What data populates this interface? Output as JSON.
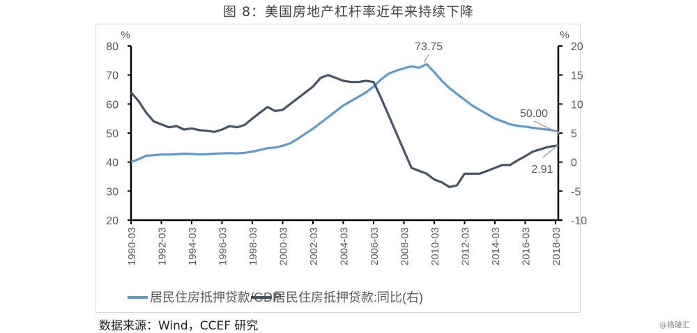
{
  "title": "图 8：美国房地产杠杆率近年来持续下降",
  "source": "数据来源：Wind，CCEF 研究",
  "watermark": "@格隆汇",
  "colors": {
    "gdp_ratio": "#5b9bd5",
    "yoy": "#44546a"
  },
  "chart_data": {
    "type": "line",
    "title": "图 8：美国房地产杠杆率近年来持续下降",
    "xlabel": "",
    "ylabel_left": "%",
    "ylabel_right": "%",
    "ylim_left": [
      20,
      80
    ],
    "ylim_right": [
      -10,
      20
    ],
    "yticks_left": [
      20,
      30,
      40,
      50,
      60,
      70,
      80
    ],
    "yticks_right": [
      -10,
      -5,
      0,
      5,
      10,
      15,
      20
    ],
    "xticks": [
      "1990-03",
      "1992-03",
      "1994-03",
      "1996-03",
      "1998-03",
      "2000-03",
      "2002-03",
      "2004-03",
      "2006-03",
      "2008-03",
      "2010-03",
      "2012-03",
      "2014-03",
      "2016-03",
      "2018-03"
    ],
    "grid": false,
    "legend_position": "bottom",
    "x": [
      1990.0,
      1990.5,
      1991.0,
      1991.5,
      1992.0,
      1992.5,
      1993.0,
      1993.5,
      1994.0,
      1994.5,
      1995.0,
      1995.5,
      1996.0,
      1996.5,
      1997.0,
      1997.5,
      1998.0,
      1998.5,
      1999.0,
      1999.5,
      2000.0,
      2000.5,
      2001.0,
      2001.5,
      2002.0,
      2002.5,
      2003.0,
      2003.5,
      2004.0,
      2004.5,
      2005.0,
      2005.5,
      2006.0,
      2006.5,
      2007.0,
      2007.5,
      2008.0,
      2008.5,
      2009.0,
      2009.5,
      2010.0,
      2010.5,
      2011.0,
      2011.5,
      2012.0,
      2012.5,
      2013.0,
      2013.5,
      2014.0,
      2014.5,
      2015.0,
      2015.5,
      2016.0,
      2016.5,
      2017.0,
      2017.5,
      2018.0,
      2018.25
    ],
    "series": [
      {
        "name": "居民住房抵押贷款/GDP",
        "axis": "left",
        "values": [
          40.0,
          41.0,
          42.2,
          42.4,
          42.6,
          42.6,
          42.7,
          42.9,
          42.8,
          42.6,
          42.7,
          42.9,
          43.0,
          43.1,
          43.0,
          43.2,
          43.6,
          44.2,
          44.8,
          45.0,
          45.6,
          46.5,
          48.0,
          49.8,
          51.5,
          53.5,
          55.5,
          57.5,
          59.5,
          61.0,
          62.5,
          64.0,
          66.0,
          68.5,
          70.5,
          71.5,
          72.3,
          73.0,
          72.5,
          73.75,
          71.0,
          68.0,
          65.5,
          63.5,
          61.5,
          59.5,
          58.0,
          56.5,
          55.0,
          54.0,
          53.0,
          52.5,
          52.2,
          51.8,
          51.5,
          51.2,
          50.8,
          50.0
        ]
      },
      {
        "name": "居民住房抵押贷款:同比(右)",
        "axis": "right",
        "values": [
          12.0,
          10.5,
          8.5,
          7.0,
          6.5,
          6.0,
          6.2,
          5.6,
          5.8,
          5.5,
          5.4,
          5.2,
          5.6,
          6.2,
          6.0,
          6.4,
          7.5,
          8.5,
          9.5,
          8.8,
          9.0,
          10.0,
          11.0,
          12.0,
          13.0,
          14.5,
          15.0,
          14.5,
          14.0,
          13.8,
          13.8,
          14.0,
          13.8,
          11.0,
          8.0,
          5.0,
          2.0,
          -1.0,
          -1.5,
          -2.0,
          -3.0,
          -3.5,
          -4.3,
          -4.0,
          -2.0,
          -2.0,
          -2.0,
          -1.5,
          -1.0,
          -0.5,
          -0.5,
          0.3,
          1.0,
          1.8,
          2.2,
          2.6,
          2.8,
          2.91
        ]
      }
    ],
    "annotations": [
      {
        "text": "73.75",
        "series": "居民住房抵押贷款/GDP",
        "x": 2009.5,
        "y": 73.75
      },
      {
        "text": "50.00",
        "series": "居民住房抵押贷款/GDP",
        "x": 2018.25,
        "y": 50.0
      },
      {
        "text": "2.91",
        "series": "居民住房抵押贷款:同比(右)",
        "x": 2018.25,
        "y": 2.91
      }
    ]
  },
  "legend": [
    {
      "label": "居民住房抵押贷款/GDP"
    },
    {
      "label": "居民住房抵押贷款:同比(右)"
    }
  ]
}
